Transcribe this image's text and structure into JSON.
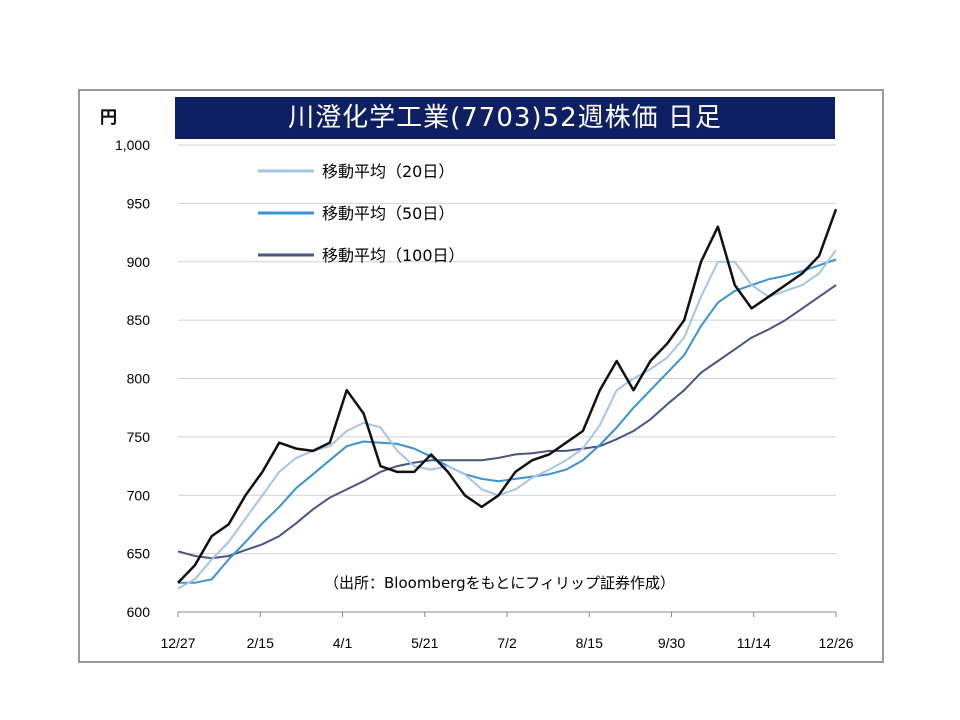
{
  "chart_data": {
    "type": "line",
    "title": "川澄化学工業(7703)52週株価 日足",
    "unit_label": "円",
    "source_note": "（出所：Bloombergをもとにフィリップ証券作成）",
    "ylim": [
      600,
      1000
    ],
    "yticks": [
      600,
      650,
      700,
      750,
      800,
      850,
      900,
      950,
      1000
    ],
    "ytick_labels": [
      "600",
      "650",
      "700",
      "750",
      "800",
      "850",
      "900",
      "950",
      "1,000"
    ],
    "xticks": [
      "12/27",
      "2/15",
      "4/1",
      "5/21",
      "7/2",
      "8/15",
      "9/30",
      "11/14",
      "12/26"
    ],
    "grid": true,
    "legend_position": "top-left",
    "x": [
      "12/27",
      "1/6",
      "1/16",
      "1/26",
      "2/5",
      "2/15",
      "2/25",
      "3/7",
      "3/17",
      "3/27",
      "4/1",
      "4/11",
      "4/21",
      "5/1",
      "5/11",
      "5/21",
      "5/31",
      "6/10",
      "6/20",
      "6/30",
      "7/2",
      "7/12",
      "7/22",
      "8/1",
      "8/11",
      "8/15",
      "8/25",
      "9/4",
      "9/14",
      "9/24",
      "9/30",
      "10/10",
      "10/20",
      "10/30",
      "11/9",
      "11/14",
      "11/24",
      "12/4",
      "12/14",
      "12/26"
    ],
    "series": [
      {
        "name": "",
        "color": "#111111",
        "values": [
          625,
          640,
          665,
          675,
          700,
          720,
          745,
          740,
          738,
          745,
          790,
          770,
          725,
          720,
          720,
          735,
          720,
          700,
          690,
          700,
          720,
          730,
          735,
          745,
          755,
          790,
          815,
          790,
          815,
          830,
          850,
          900,
          930,
          880,
          860,
          870,
          880,
          890,
          905,
          945
        ]
      },
      {
        "name": "移動平均（20日）",
        "color": "#a6c4e4",
        "values": [
          620,
          628,
          645,
          660,
          680,
          700,
          720,
          732,
          738,
          742,
          755,
          762,
          758,
          738,
          725,
          722,
          725,
          718,
          705,
          700,
          705,
          715,
          722,
          730,
          740,
          760,
          790,
          800,
          808,
          818,
          835,
          870,
          900,
          900,
          880,
          870,
          875,
          880,
          890,
          910
        ]
      },
      {
        "name": "移動平均（50日）",
        "color": "#3b93d1",
        "values": [
          625,
          625,
          628,
          645,
          660,
          676,
          690,
          706,
          718,
          730,
          742,
          746,
          745,
          744,
          740,
          733,
          725,
          718,
          714,
          712,
          714,
          716,
          718,
          722,
          730,
          743,
          758,
          775,
          790,
          805,
          820,
          845,
          865,
          875,
          880,
          885,
          888,
          892,
          897,
          902
        ]
      },
      {
        "name": "移動平均（100日）",
        "color": "#4a5580",
        "values": [
          652,
          648,
          646,
          648,
          653,
          658,
          665,
          676,
          688,
          698,
          705,
          712,
          720,
          725,
          728,
          730,
          730,
          730,
          730,
          732,
          735,
          736,
          738,
          738,
          740,
          742,
          748,
          755,
          765,
          778,
          790,
          805,
          815,
          825,
          835,
          842,
          850,
          860,
          870,
          880
        ]
      }
    ]
  }
}
